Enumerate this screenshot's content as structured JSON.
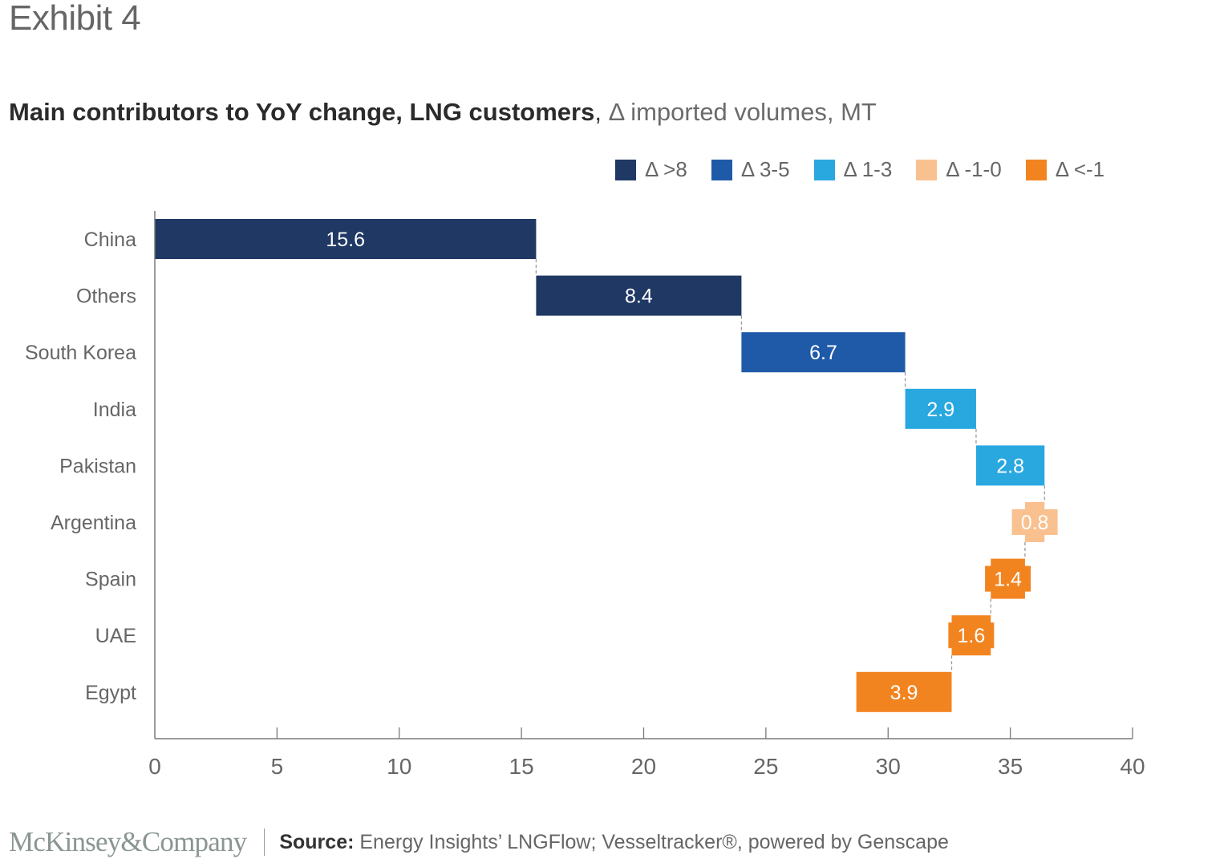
{
  "exhibit_label": "Exhibit 4",
  "title": {
    "bold": "Main contributors to YoY change, LNG customers",
    "separator": ",",
    "subtitle": " Δ imported volumes, MT"
  },
  "legend": [
    {
      "label": "Δ >8",
      "color": "#1f3864"
    },
    {
      "label": "Δ 3-5",
      "color": "#1f5aa8"
    },
    {
      "label": "Δ 1-3",
      "color": "#29a8e0"
    },
    {
      "label": "Δ -1-0",
      "color": "#f9c18f"
    },
    {
      "label": "Δ <-1",
      "color": "#f28420"
    }
  ],
  "chart_data": {
    "type": "bar",
    "subtype": "waterfall-horizontal",
    "title": "Main contributors to YoY change, LNG customers",
    "xlabel": "Δ imported volumes, MT",
    "ylabel": "",
    "xlim": [
      0,
      40
    ],
    "x_ticks": [
      0,
      5,
      10,
      15,
      20,
      25,
      30,
      35,
      40
    ],
    "grid": false,
    "legend_position": "top-right",
    "categories": [
      "China",
      "Others",
      "South Korea",
      "India",
      "Pakistan",
      "Argentina",
      "Spain",
      "UAE",
      "Egypt"
    ],
    "values": [
      15.6,
      8.4,
      6.7,
      2.9,
      2.8,
      -0.8,
      -1.4,
      -1.6,
      -3.9
    ],
    "labels": [
      "15.6",
      "8.4",
      "6.7",
      "2.9",
      "2.8",
      "0.8",
      "1.4",
      "1.6",
      "3.9"
    ],
    "bar_colors": [
      "#1f3864",
      "#1f3864",
      "#1f5aa8",
      "#29a8e0",
      "#29a8e0",
      "#f9c18f",
      "#f28420",
      "#f28420",
      "#f28420"
    ],
    "label_color": "#ffffff",
    "connector_color": "#9a9a9a",
    "axis_color": "#7a7a7a",
    "tick_label_color": "#666666",
    "category_label_color": "#666666"
  },
  "footer": {
    "logo": "McKinsey&Company",
    "source_label": "Source:",
    "source_text": " Energy Insights’ LNGFlow; Vesseltracker®, powered by Genscape"
  }
}
